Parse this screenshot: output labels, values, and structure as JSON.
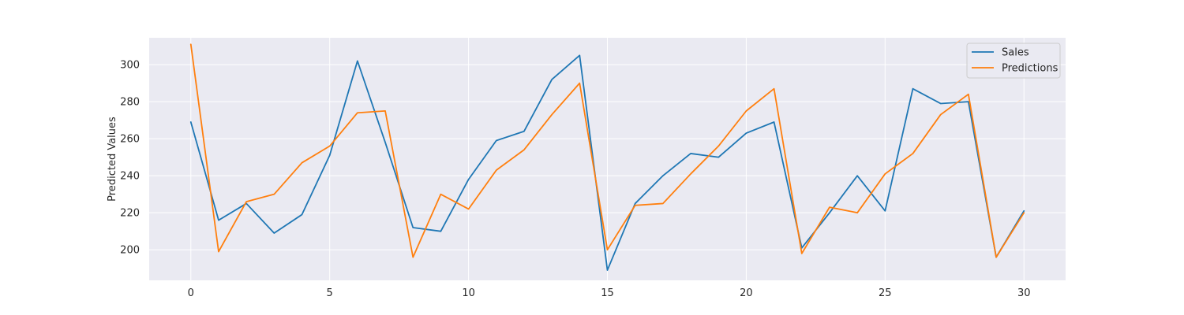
{
  "chart_data": {
    "type": "line",
    "title": "",
    "xlabel": "",
    "ylabel": "Predicted Values",
    "x": [
      0,
      1,
      2,
      3,
      4,
      5,
      6,
      7,
      8,
      9,
      10,
      11,
      12,
      13,
      14,
      15,
      16,
      17,
      18,
      19,
      20,
      21,
      22,
      23,
      24,
      25,
      26,
      27,
      28,
      29,
      30
    ],
    "xlim": [
      -1.5,
      31.5
    ],
    "ylim": [
      183.5,
      314.5
    ],
    "xticks": [
      0,
      5,
      10,
      15,
      20,
      25,
      30
    ],
    "yticks": [
      200,
      220,
      240,
      260,
      280,
      300
    ],
    "grid": true,
    "legend_position": "top-right",
    "background_color": "#eaeaf2",
    "series": [
      {
        "name": "Sales",
        "color": "#1f77b4",
        "values": [
          269,
          216,
          225,
          209,
          219,
          251,
          302,
          258,
          212,
          210,
          238,
          259,
          264,
          292,
          305,
          189,
          225,
          240,
          252,
          250,
          263,
          269,
          201,
          220,
          240,
          221,
          287,
          279,
          280,
          196,
          221
        ]
      },
      {
        "name": "Predictions",
        "color": "#ff7f0e",
        "values": [
          311,
          199,
          226,
          230,
          247,
          256,
          274,
          275,
          196,
          230,
          222,
          243,
          254,
          273,
          290,
          200,
          224,
          225,
          241,
          256,
          275,
          287,
          198,
          223,
          220,
          241,
          252,
          273,
          284,
          196,
          220
        ]
      }
    ]
  }
}
